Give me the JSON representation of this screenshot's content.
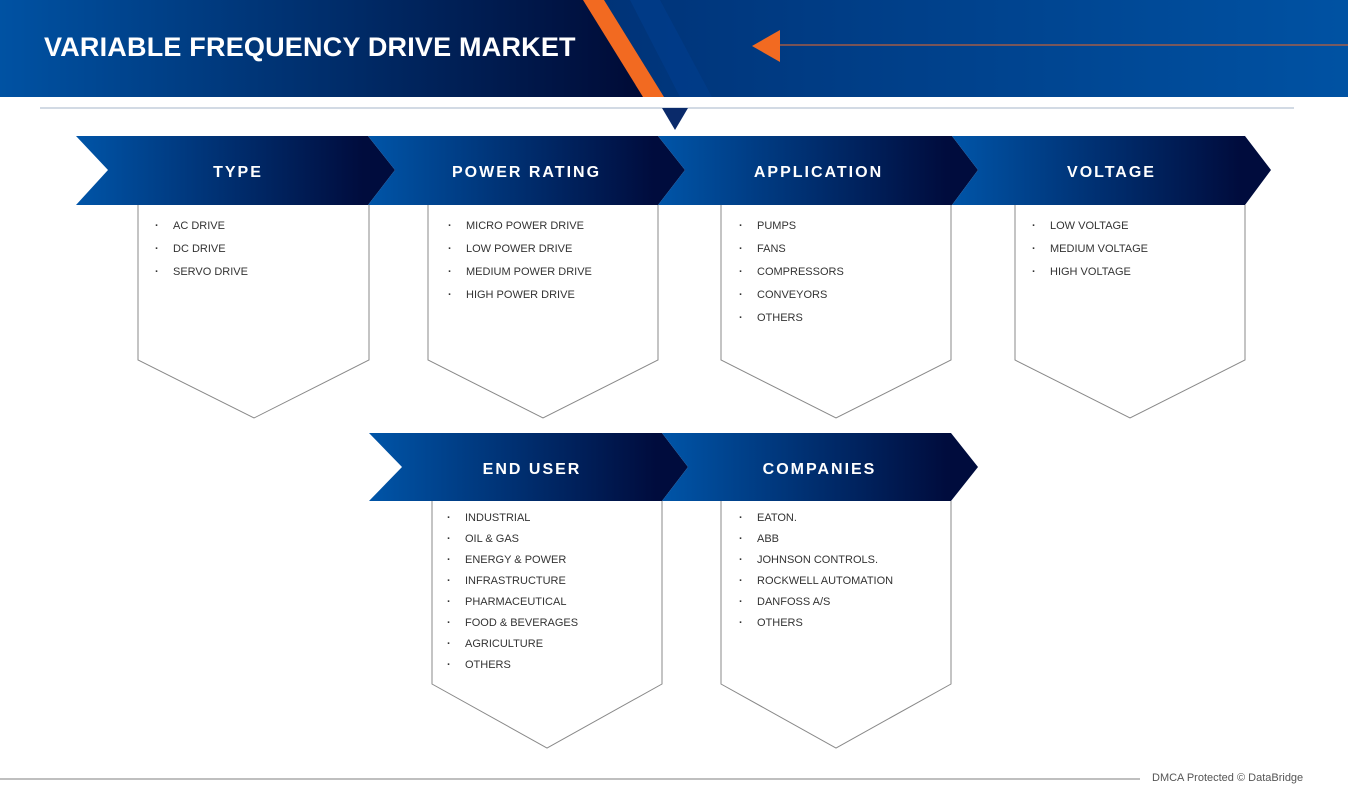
{
  "header": {
    "title": "VARIABLE FREQUENCY DRIVE MARKET"
  },
  "colors": {
    "blue": "#0052a3",
    "navy": "#000c3d",
    "orange": "#f26a21",
    "line": "#b8c4d4"
  },
  "segments": [
    {
      "label": "TYPE",
      "items": [
        "AC DRIVE",
        "DC DRIVE",
        "SERVO DRIVE"
      ]
    },
    {
      "label": "POWER RATING",
      "items": [
        "MICRO POWER DRIVE",
        "LOW POWER DRIVE",
        "MEDIUM POWER DRIVE",
        "HIGH POWER DRIVE"
      ]
    },
    {
      "label": "APPLICATION",
      "items": [
        "PUMPS",
        "FANS",
        "COMPRESSORS",
        "CONVEYORS",
        "OTHERS"
      ]
    },
    {
      "label": "VOLTAGE",
      "items": [
        "LOW VOLTAGE",
        "MEDIUM VOLTAGE",
        "HIGH VOLTAGE"
      ]
    },
    {
      "label": "END USER",
      "items": [
        "INDUSTRIAL",
        "OIL & GAS",
        "ENERGY & POWER",
        "INFRASTRUCTURE",
        "PHARMACEUTICAL",
        "FOOD & BEVERAGES",
        "AGRICULTURE",
        "OTHERS"
      ]
    },
    {
      "label": "COMPANIES",
      "items": [
        "EATON.",
        "ABB",
        "JOHNSON CONTROLS.",
        "ROCKWELL AUTOMATION",
        "DANFOSS A/S",
        "OTHERS"
      ]
    }
  ],
  "footer": {
    "text": "DMCA Protected © DataBridge"
  }
}
